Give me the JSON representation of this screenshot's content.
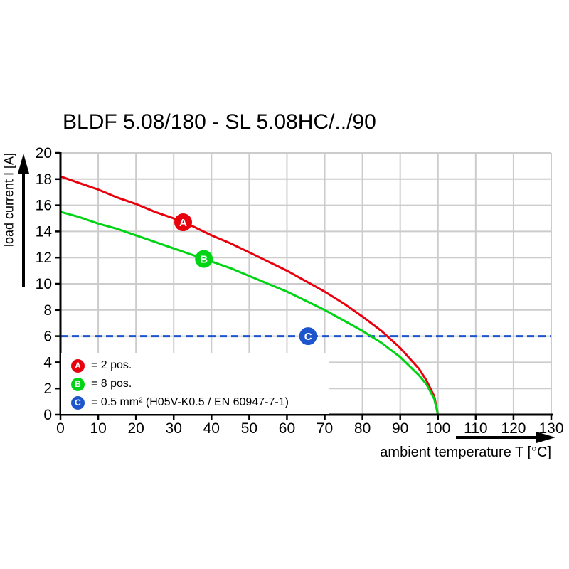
{
  "chart_data": {
    "type": "line",
    "title": "BLDF 5.08/180 - SL 5.08HC/../90",
    "xlabel": "ambient temperature T [°C]",
    "ylabel": "load current I [A]",
    "xlim": [
      0,
      130
    ],
    "ylim": [
      0,
      20
    ],
    "xticks": [
      0,
      10,
      20,
      30,
      40,
      50,
      60,
      70,
      80,
      90,
      100,
      110,
      120,
      130
    ],
    "yticks": [
      0,
      2,
      4,
      6,
      8,
      10,
      12,
      14,
      16,
      18,
      20
    ],
    "grid": true,
    "grid_color": "#cccccc",
    "axis_color": "#000000",
    "legend_position": "bottom-left",
    "series": [
      {
        "name": "A",
        "legend_label": "= 2 pos.",
        "color": "#e8000d",
        "style": "solid",
        "marker": {
          "x": 32.5,
          "y": 14.7
        },
        "points": [
          [
            0,
            18.2
          ],
          [
            5,
            17.7
          ],
          [
            10,
            17.2
          ],
          [
            15,
            16.6
          ],
          [
            20,
            16.1
          ],
          [
            25,
            15.5
          ],
          [
            30,
            15.0
          ],
          [
            35,
            14.4
          ],
          [
            40,
            13.7
          ],
          [
            45,
            13.1
          ],
          [
            50,
            12.4
          ],
          [
            55,
            11.7
          ],
          [
            60,
            11.0
          ],
          [
            65,
            10.2
          ],
          [
            70,
            9.4
          ],
          [
            75,
            8.5
          ],
          [
            80,
            7.5
          ],
          [
            85,
            6.4
          ],
          [
            90,
            5.1
          ],
          [
            95,
            3.5
          ],
          [
            97,
            2.6
          ],
          [
            99,
            1.4
          ],
          [
            100,
            0
          ]
        ]
      },
      {
        "name": "B",
        "legend_label": "= 8 pos.",
        "color": "#00d415",
        "style": "solid",
        "marker": {
          "x": 38,
          "y": 11.9
        },
        "points": [
          [
            0,
            15.5
          ],
          [
            5,
            15.1
          ],
          [
            10,
            14.6
          ],
          [
            15,
            14.2
          ],
          [
            20,
            13.7
          ],
          [
            25,
            13.2
          ],
          [
            30,
            12.7
          ],
          [
            35,
            12.2
          ],
          [
            40,
            11.7
          ],
          [
            45,
            11.2
          ],
          [
            50,
            10.6
          ],
          [
            55,
            10.0
          ],
          [
            60,
            9.4
          ],
          [
            65,
            8.7
          ],
          [
            70,
            8.0
          ],
          [
            75,
            7.2
          ],
          [
            80,
            6.4
          ],
          [
            85,
            5.5
          ],
          [
            90,
            4.4
          ],
          [
            95,
            3.0
          ],
          [
            97,
            2.3
          ],
          [
            99,
            1.2
          ],
          [
            100,
            0
          ]
        ]
      },
      {
        "name": "C",
        "legend_label": "= 0.5 mm² (H05V-K0.5 / EN 60947-7-1)",
        "color": "#1d55cc",
        "style": "dashed",
        "marker": {
          "x": 65.6,
          "y": 6
        },
        "points": [
          [
            0,
            6
          ],
          [
            130,
            6
          ]
        ]
      }
    ]
  }
}
